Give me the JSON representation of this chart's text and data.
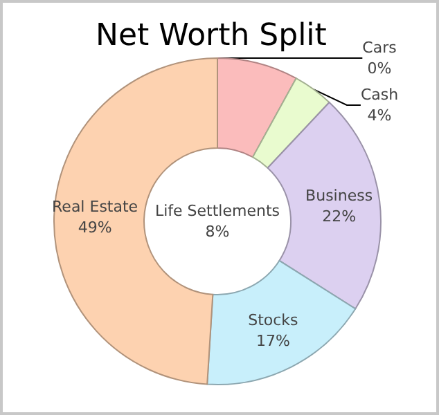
{
  "chart_data": {
    "type": "donut",
    "title": "Net Worth Split",
    "categories": [
      "Cars",
      "Life Settlements",
      "Cash",
      "Business",
      "Stocks",
      "Real Estate"
    ],
    "values": [
      0,
      8,
      4,
      22,
      17,
      49
    ],
    "value_labels": [
      "0%",
      "8%",
      "4%",
      "22%",
      "17%",
      "49%"
    ],
    "colors": [
      "#9db8e6",
      "#fbbcbc",
      "#e9fbcf",
      "#dcd0f0",
      "#c8effb",
      "#fdd2b0"
    ],
    "legend": false
  }
}
